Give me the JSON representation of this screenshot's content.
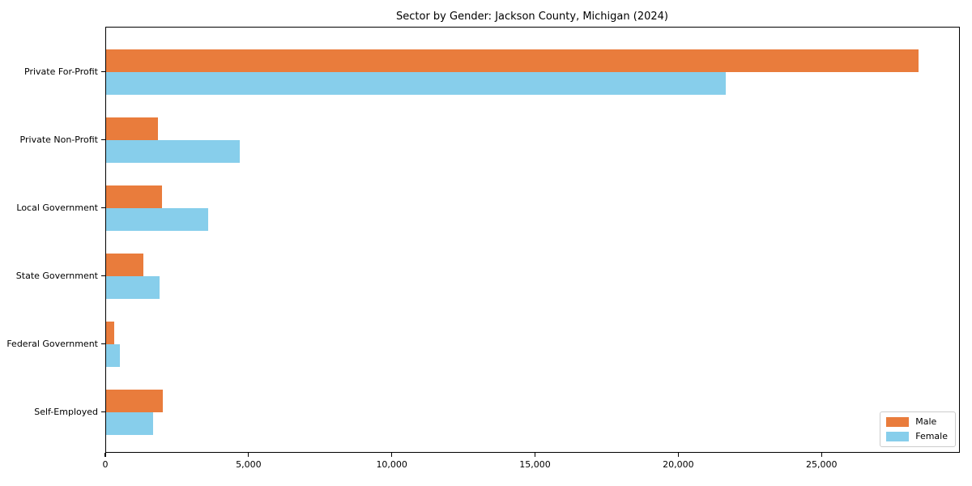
{
  "chart_data": {
    "type": "bar",
    "orientation": "horizontal",
    "title": "Sector by Gender: Jackson County, Michigan (2024)",
    "xlabel": "",
    "ylabel": "",
    "categories": [
      "Private For-Profit",
      "Private Non-Profit",
      "Local Government",
      "State Government",
      "Federal Government",
      "Self-Employed"
    ],
    "series": [
      {
        "name": "Male",
        "color": "#E97C3C",
        "values": [
          28370,
          1820,
          1960,
          1300,
          290,
          1990
        ]
      },
      {
        "name": "Female",
        "color": "#87CEEB",
        "values": [
          21620,
          4660,
          3560,
          1870,
          480,
          1630
        ]
      }
    ],
    "xlim": [
      0,
      29800
    ],
    "xticks": [
      0,
      5000,
      10000,
      15000,
      20000,
      25000
    ],
    "xtick_labels": [
      "0",
      "5,000",
      "10,000",
      "15,000",
      "20,000",
      "25,000"
    ],
    "grid": false,
    "legend": {
      "position": "lower right",
      "entries": [
        "Male",
        "Female"
      ]
    }
  }
}
